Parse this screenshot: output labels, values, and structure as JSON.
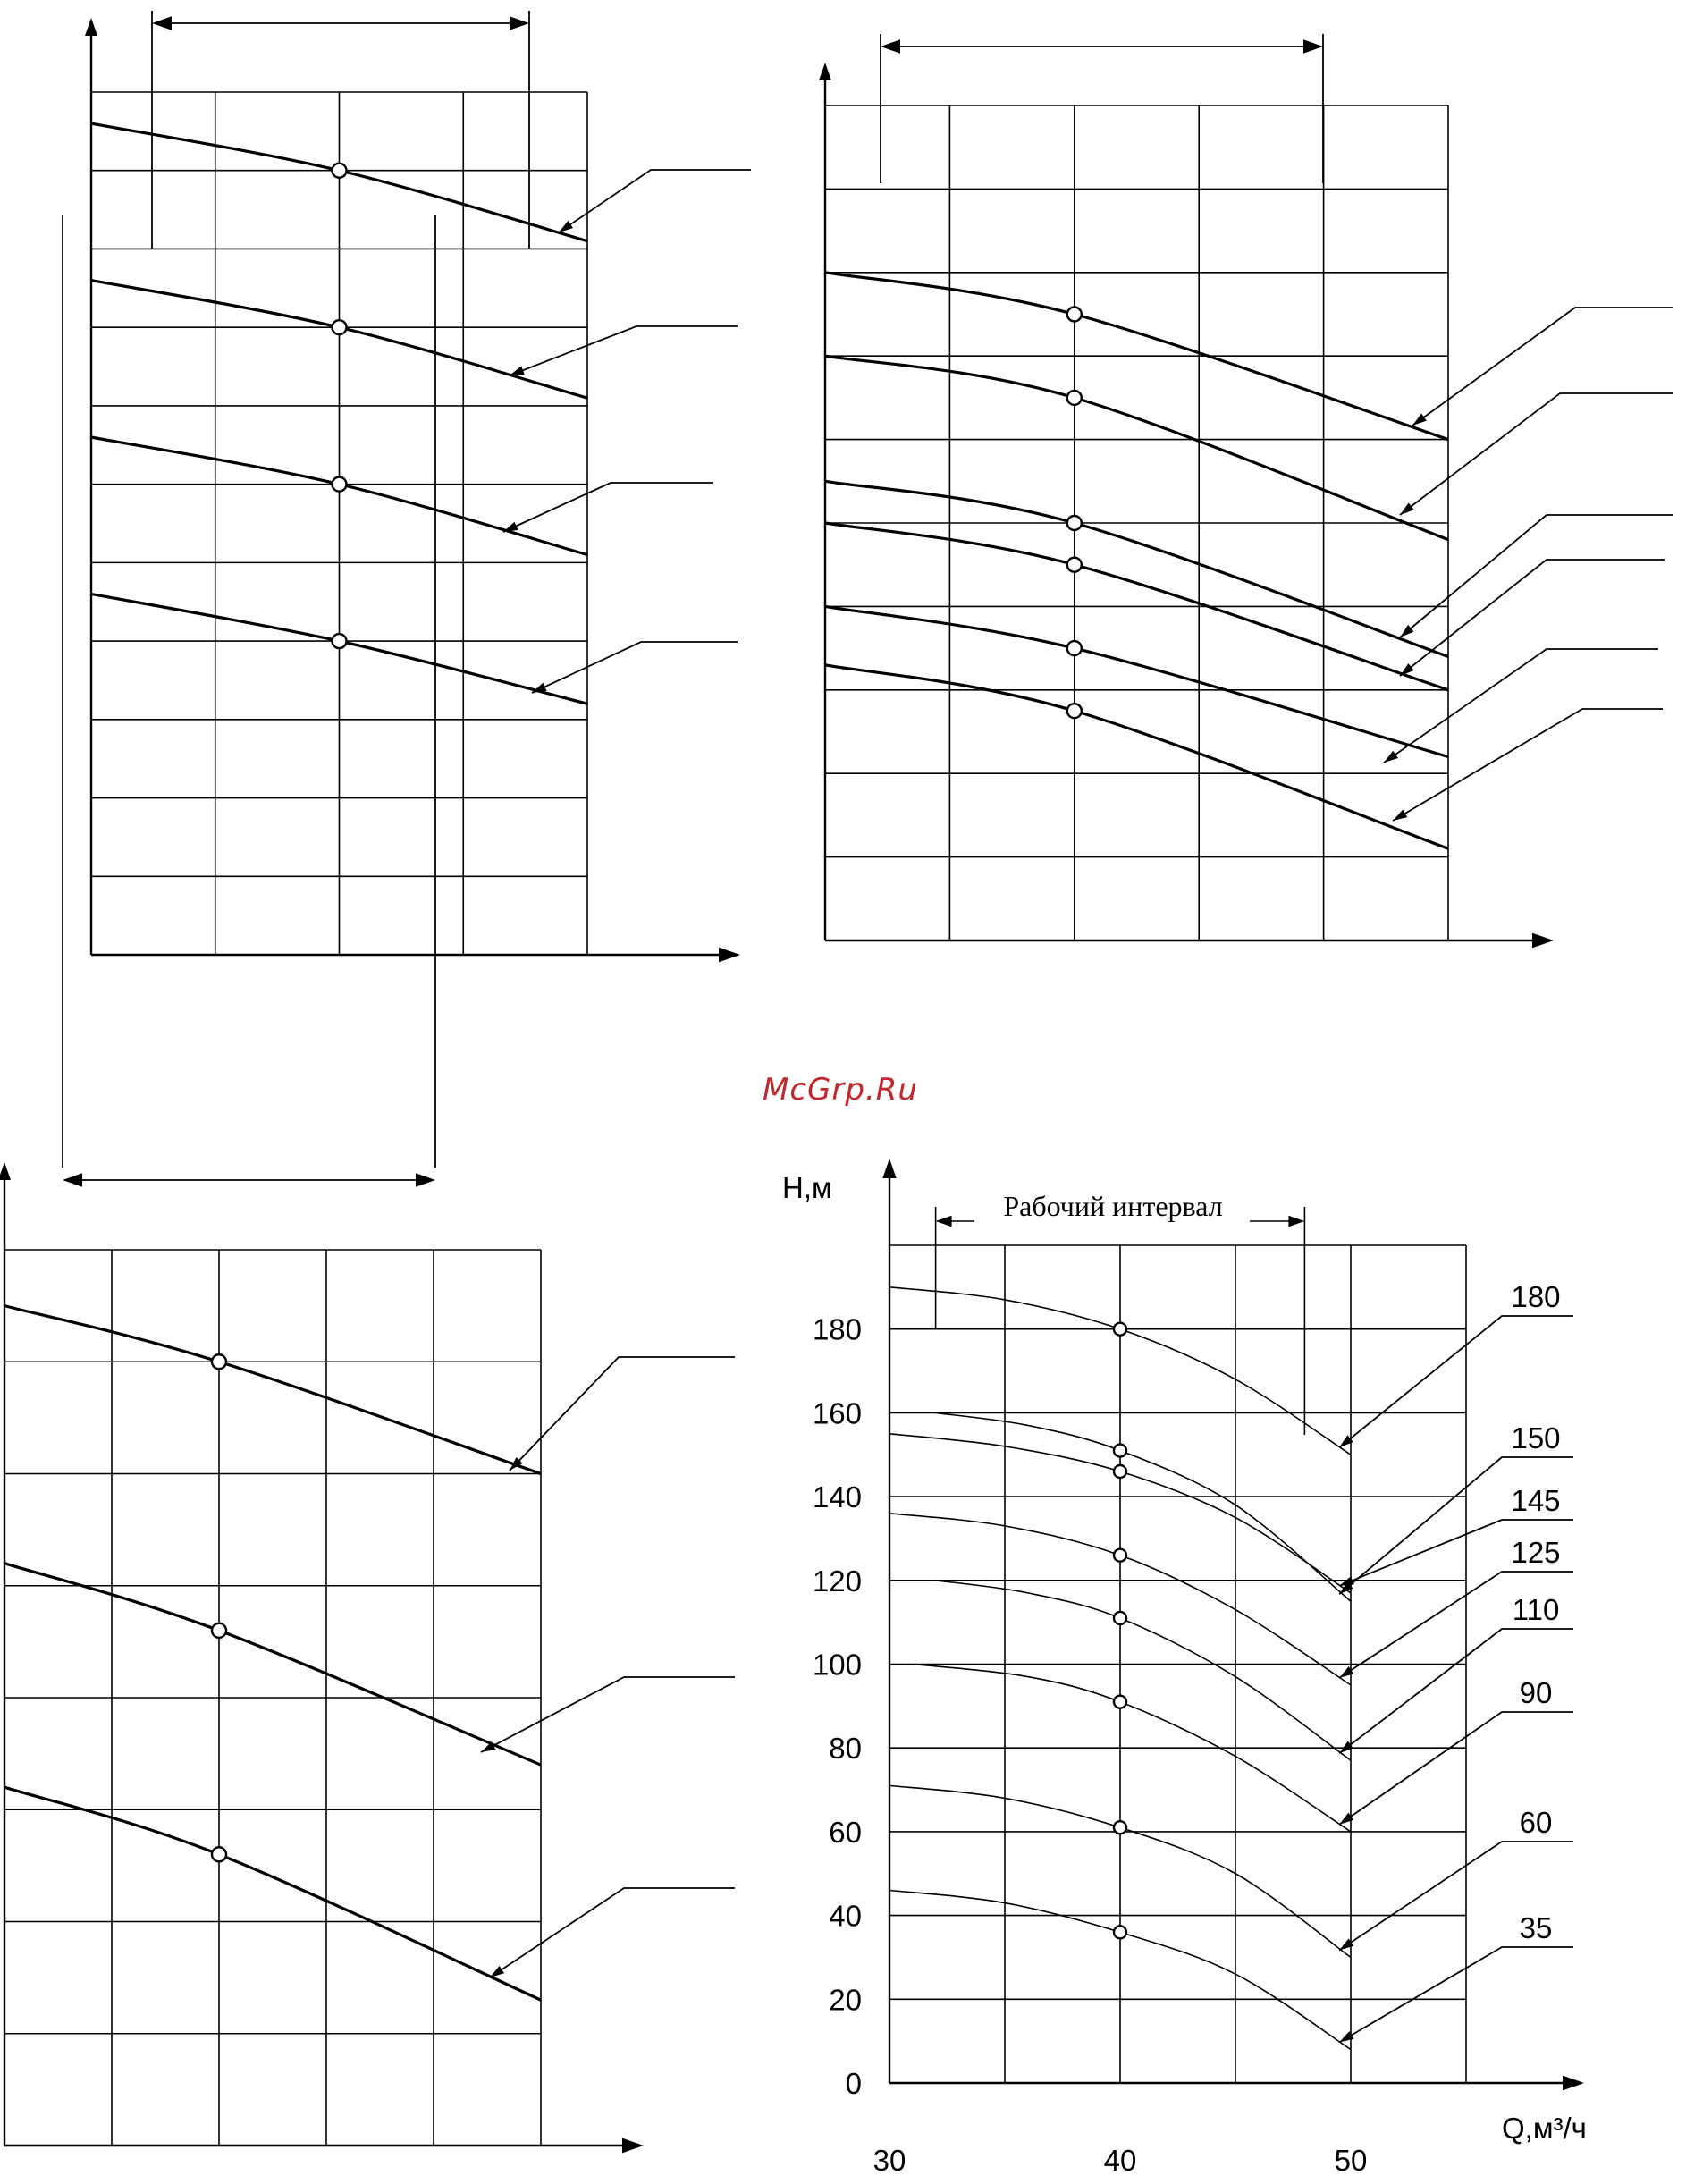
{
  "watermark": "McGrp.Ru",
  "chart_data": [
    {
      "type": "line",
      "title": "",
      "xlabel": "",
      "ylabel": "",
      "series": [
        {
          "x": [
            0,
            2,
            4
          ],
          "y": [
            10.6,
            10,
            9.1
          ],
          "marker_x": 2
        },
        {
          "x": [
            0,
            2,
            4
          ],
          "y": [
            8.6,
            8,
            7.1
          ],
          "marker_x": 2
        },
        {
          "x": [
            0,
            2,
            4
          ],
          "y": [
            6.6,
            6,
            5.1
          ],
          "marker_x": 2
        },
        {
          "x": [
            0,
            2,
            4
          ],
          "y": [
            4.6,
            4,
            3.2
          ],
          "marker_x": 2
        }
      ],
      "xlim": [
        0,
        4
      ],
      "ylim": [
        0,
        11
      ]
    },
    {
      "type": "line",
      "title": "",
      "xlabel": "",
      "ylabel": "",
      "series": [
        {
          "x": [
            0,
            2,
            5
          ],
          "y": [
            8,
            7.5,
            6
          ]
        },
        {
          "x": [
            0,
            2,
            5
          ],
          "y": [
            7,
            6.5,
            4.8
          ]
        },
        {
          "x": [
            0,
            2,
            5
          ],
          "y": [
            5.5,
            5,
            3.4
          ]
        },
        {
          "x": [
            0,
            2,
            5
          ],
          "y": [
            5,
            4.5,
            3
          ]
        },
        {
          "x": [
            0,
            2,
            5
          ],
          "y": [
            4,
            3.5,
            2.2
          ]
        },
        {
          "x": [
            0,
            2,
            5
          ],
          "y": [
            3.3,
            2.75,
            1.1
          ]
        }
      ],
      "xlim": [
        0,
        5
      ],
      "ylim": [
        0,
        10
      ]
    },
    {
      "type": "line",
      "title": "",
      "xlabel": "",
      "ylabel": "",
      "series": [
        {
          "x": [
            0,
            2,
            5
          ],
          "y": [
            7.5,
            7,
            6
          ]
        },
        {
          "x": [
            0,
            2,
            5
          ],
          "y": [
            5.2,
            4.6,
            3.4
          ]
        },
        {
          "x": [
            0,
            2,
            5
          ],
          "y": [
            3.2,
            2.6,
            1.3
          ]
        }
      ],
      "xlim": [
        0,
        5
      ],
      "ylim": [
        0,
        8
      ]
    },
    {
      "type": "line",
      "title": "",
      "xlabel": "Q,м³/ч",
      "ylabel": "Н,м",
      "annotation": "Рабочий интервал",
      "working_interval": [
        32,
        48
      ],
      "xlim": [
        30,
        55
      ],
      "ylim": [
        0,
        200
      ],
      "x_ticks": [
        "30",
        "40",
        "50"
      ],
      "y_ticks": [
        "0",
        "20",
        "40",
        "60",
        "80",
        "100",
        "120",
        "140",
        "160",
        "180"
      ],
      "series": [
        {
          "name": "180",
          "x": [
            30,
            35,
            40,
            45,
            50
          ],
          "y": [
            190,
            187,
            180,
            168,
            150
          ]
        },
        {
          "name": "150",
          "x": [
            32,
            36,
            40,
            45,
            50
          ],
          "y": [
            160,
            157,
            151,
            138,
            115
          ]
        },
        {
          "name": "145",
          "x": [
            30,
            35,
            40,
            45,
            50
          ],
          "y": [
            155,
            152,
            146,
            135,
            117
          ]
        },
        {
          "name": "125",
          "x": [
            30,
            35,
            40,
            45,
            50
          ],
          "y": [
            136,
            133,
            126,
            113,
            95
          ]
        },
        {
          "name": "110",
          "x": [
            32,
            36,
            40,
            45,
            50
          ],
          "y": [
            120,
            117,
            111,
            97,
            77
          ]
        },
        {
          "name": "90",
          "x": [
            31,
            36,
            40,
            45,
            50
          ],
          "y": [
            100,
            97,
            91,
            78,
            60
          ]
        },
        {
          "name": "60",
          "x": [
            30,
            35,
            40,
            45,
            50
          ],
          "y": [
            71,
            68,
            61,
            50,
            30
          ]
        },
        {
          "name": "35",
          "x": [
            30,
            35,
            40,
            45,
            50
          ],
          "y": [
            46,
            43,
            36,
            26,
            8
          ]
        }
      ]
    }
  ]
}
